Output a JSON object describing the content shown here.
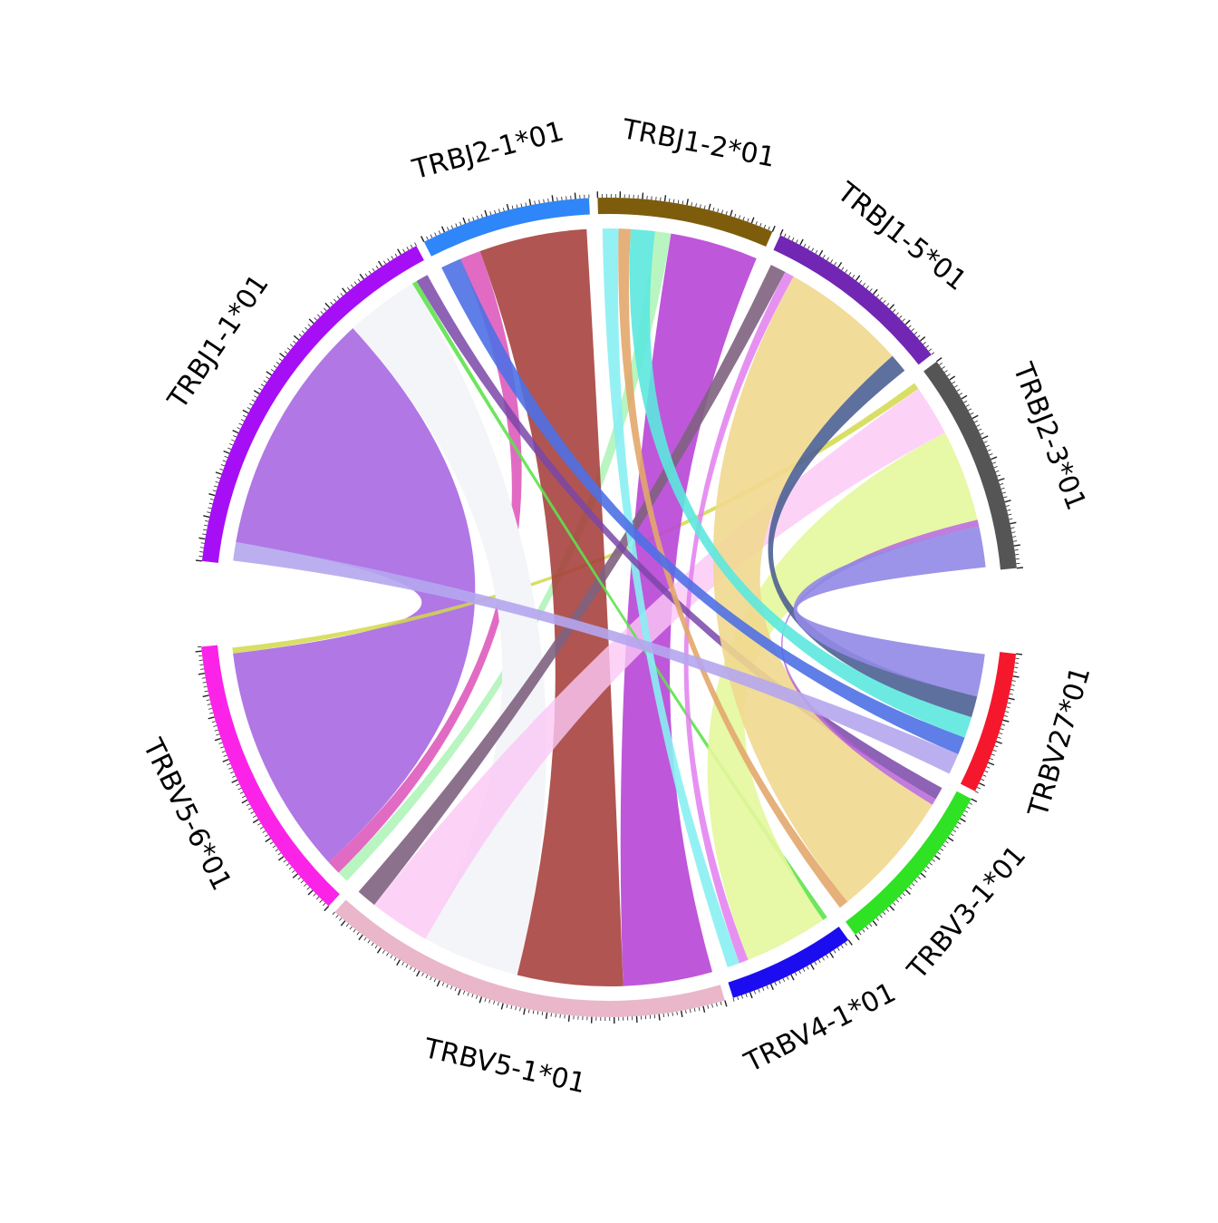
{
  "diagram": {
    "type": "chord",
    "segments": [
      {
        "id": "TRBV27*01",
        "label": "TRBV27*01",
        "color": "#f5182d",
        "weight": 2
      },
      {
        "id": "TRBV3-1*01",
        "label": "TRBV3-1*01",
        "color": "#2fe224",
        "weight": 2.5
      },
      {
        "id": "TRBV4-1*01",
        "label": "TRBV4-1*01",
        "color": "#1c0df0",
        "weight": 1.8
      },
      {
        "id": "TRBV5-1*01",
        "label": "TRBV5-1*01",
        "color": "#e9b7c9",
        "weight": 5.8
      },
      {
        "id": "TRBV5-6*01",
        "label": "TRBV5-6*01",
        "color": "#fb23e8",
        "weight": 4.1
      },
      {
        "id": "TRBJ1-1*01",
        "label": "TRBJ1-1*01",
        "color": "#a60ff5",
        "weight": 5.3
      },
      {
        "id": "TRBJ2-1*01",
        "label": "TRBJ2-1*01",
        "color": "#2f86f8",
        "weight": 2.3
      },
      {
        "id": "TRBJ1-2*01",
        "label": "TRBJ1-2*01",
        "color": "#7d5d0c",
        "weight": 2.4
      },
      {
        "id": "TRBJ1-5*01",
        "label": "TRBJ1-5*01",
        "color": "#7226b4",
        "weight": 2.6
      },
      {
        "id": "TRBJ2-3*01",
        "label": "TRBJ2-3*01",
        "color": "#555555",
        "weight": 3.0
      }
    ],
    "links": [
      {
        "from": "TRBV5-6*01",
        "to": "TRBJ1-1*01",
        "color": "#a25fe1",
        "opacity": 0.85,
        "value": 4.0
      },
      {
        "from": "TRBV5-6*01",
        "to": "TRBJ2-1*01",
        "color": "#d946b4",
        "opacity": 0.8,
        "value": 0.25
      },
      {
        "from": "TRBV5-6*01",
        "to": "TRBJ1-2*01",
        "color": "#a7f2b0",
        "opacity": 0.8,
        "value": 0.2
      },
      {
        "from": "TRBV5-6*01",
        "to": "TRBJ2-3*01",
        "color": "#d2d84a",
        "opacity": 0.85,
        "value": 0.1
      },
      {
        "from": "TRBV5-1*01",
        "to": "TRBJ1-1*01",
        "color": "#f4f5f8",
        "opacity": 1.0,
        "value": 1.2
      },
      {
        "from": "TRBV5-1*01",
        "to": "TRBJ2-1*01",
        "color": "#a53d3a",
        "opacity": 0.88,
        "value": 1.3
      },
      {
        "from": "TRBV5-1*01",
        "to": "TRBJ1-2*01",
        "color": "#b845d6",
        "opacity": 0.9,
        "value": 1.1
      },
      {
        "from": "TRBV5-1*01",
        "to": "TRBJ1-5*01",
        "color": "#80627f",
        "opacity": 0.9,
        "value": 0.25
      },
      {
        "from": "TRBV5-1*01",
        "to": "TRBJ2-3*01",
        "color": "#fbc8f5",
        "opacity": 0.8,
        "value": 0.75
      },
      {
        "from": "TRBV4-1*01",
        "to": "TRBJ1-1*01",
        "color": "#5ee24e",
        "opacity": 0.9,
        "value": 0.08
      },
      {
        "from": "TRBV4-1*01",
        "to": "TRBJ1-2*01",
        "color": "#88eff2",
        "opacity": 0.9,
        "value": 0.2
      },
      {
        "from": "TRBV4-1*01",
        "to": "TRBJ1-5*01",
        "color": "#e27ef0",
        "opacity": 0.85,
        "value": 0.15
      },
      {
        "from": "TRBV4-1*01",
        "to": "TRBJ2-3*01",
        "color": "#e4f79c",
        "opacity": 0.9,
        "value": 1.35
      },
      {
        "from": "TRBV3-1*01",
        "to": "TRBJ1-1*01",
        "color": "#7a46a8",
        "opacity": 0.85,
        "value": 0.2
      },
      {
        "from": "TRBV3-1*01",
        "to": "TRBJ1-2*01",
        "color": "#e2a76b",
        "opacity": 0.9,
        "value": 0.15
      },
      {
        "from": "TRBV3-1*01",
        "to": "TRBJ1-5*01",
        "color": "#f1d88f",
        "opacity": 0.9,
        "value": 2.0
      },
      {
        "from": "TRBV3-1*01",
        "to": "TRBJ2-3*01",
        "color": "#b05cd4",
        "opacity": 0.8,
        "value": 0.1
      },
      {
        "from": "TRBV27*01",
        "to": "TRBJ1-1*01",
        "color": "#b5a6ee",
        "opacity": 0.9,
        "value": 0.3
      },
      {
        "from": "TRBV27*01",
        "to": "TRBJ2-1*01",
        "color": "#4f70e4",
        "opacity": 0.9,
        "value": 0.25
      },
      {
        "from": "TRBV27*01",
        "to": "TRBJ1-2*01",
        "color": "#5ce8de",
        "opacity": 0.9,
        "value": 0.3
      },
      {
        "from": "TRBV27*01",
        "to": "TRBJ1-5*01",
        "color": "#4c6192",
        "opacity": 0.9,
        "value": 0.3
      },
      {
        "from": "TRBV27*01",
        "to": "TRBJ2-3*01",
        "color": "#9188e6",
        "opacity": 0.9,
        "value": 0.6
      }
    ]
  }
}
